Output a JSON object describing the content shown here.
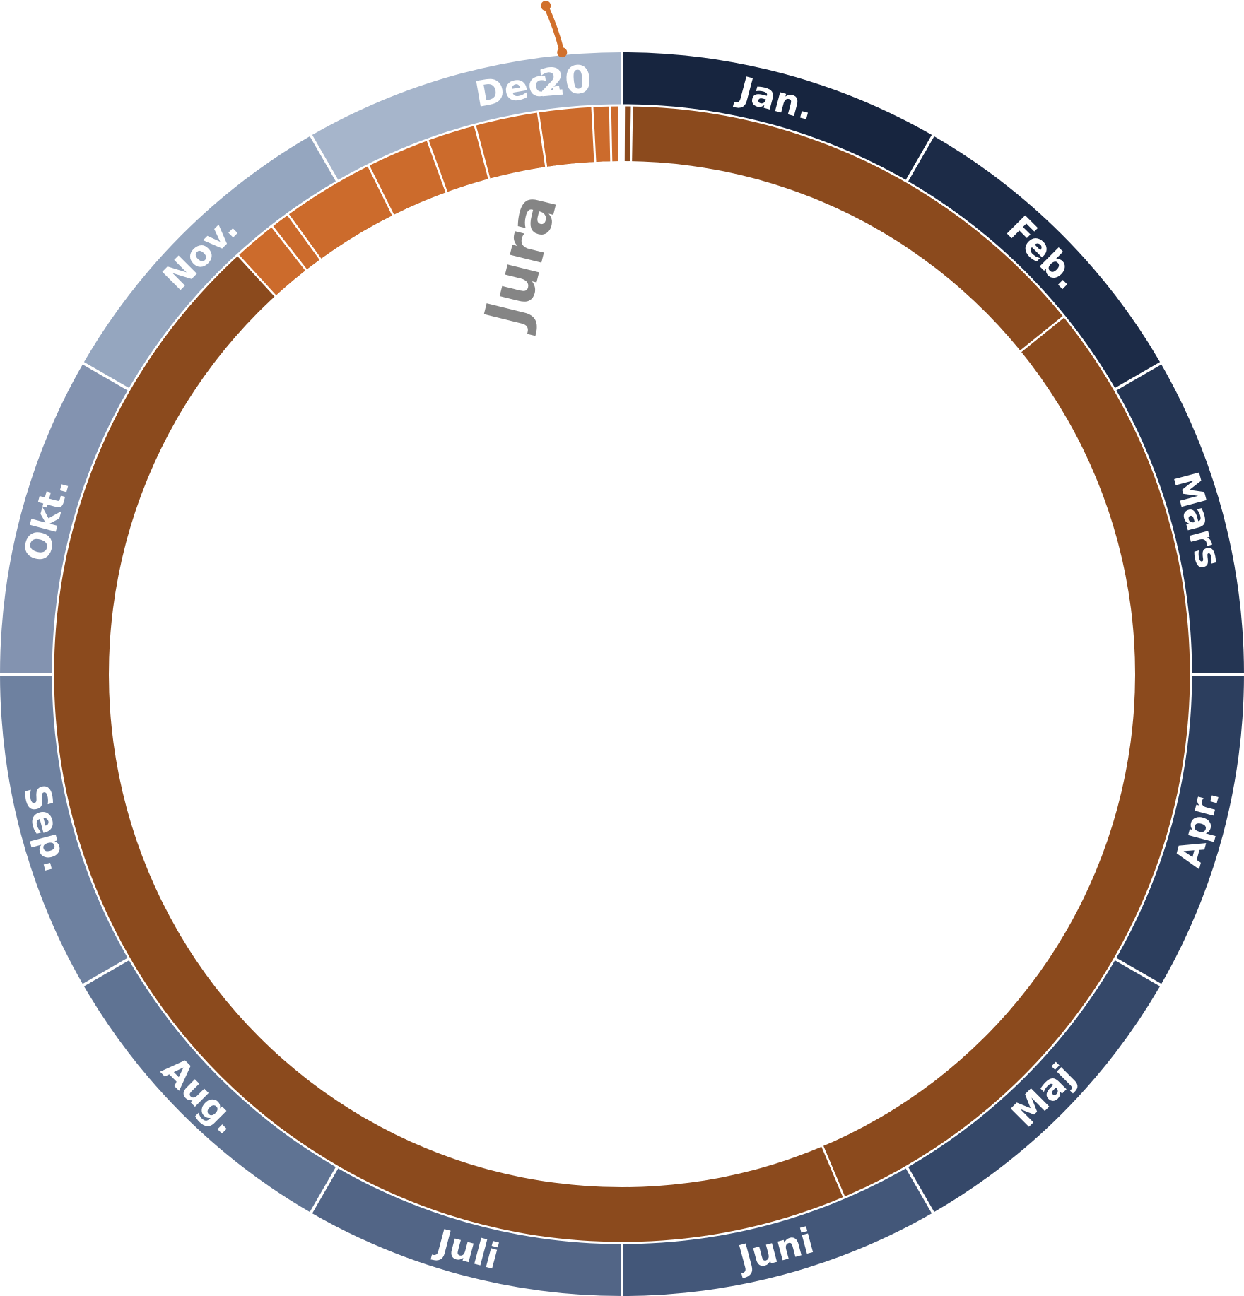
{
  "months": [
    {
      "label": "Jan.",
      "color": "#17253f"
    },
    {
      "label": "Feb.",
      "color": "#1c2b47"
    },
    {
      "label": "Mars",
      "color": "#243553"
    },
    {
      "label": "Apr.",
      "color": "#2c3e5e"
    },
    {
      "label": "Maj",
      "color": "#354869"
    },
    {
      "label": "Juni",
      "color": "#435779"
    },
    {
      "label": "Juli",
      "color": "#526586"
    },
    {
      "label": "Aug.",
      "color": "#5f7393"
    },
    {
      "label": "Sep.",
      "color": "#6e81a0"
    },
    {
      "label": "Okt.",
      "color": "#8393b0"
    },
    {
      "label": "Nov.",
      "color": "#95a6bf"
    },
    {
      "label": "Dec.",
      "color": "#a6b5cb"
    }
  ],
  "marker": {
    "label": "20",
    "color": "#d1702c"
  },
  "era_label": "Jura",
  "colors": {
    "main_band": "#8b4a1d",
    "recent_band": "#cc6b2c",
    "separator": "#ffffff",
    "era_label": "#858585"
  }
}
